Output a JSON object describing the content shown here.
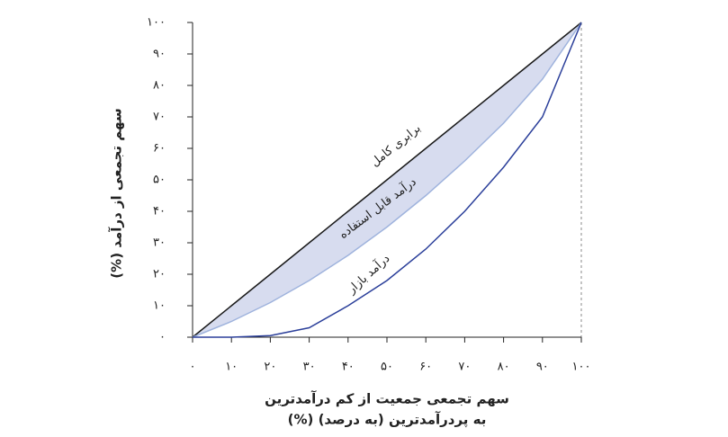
{
  "chart_data": {
    "type": "line",
    "xlabel": [
      "سهم تجمعی جمعیت از کم درآمدترین",
      "به پردرآمدترین (به درصد) (%)"
    ],
    "ylabel": "سهم تجمعی از درآمد (%)",
    "x": [
      0,
      10,
      20,
      30,
      40,
      50,
      60,
      70,
      80,
      90,
      100
    ],
    "series": [
      {
        "name": "برابری کامل",
        "color": "#1a1a1a",
        "values": [
          0,
          10,
          20,
          30,
          40,
          50,
          60,
          70,
          80,
          90,
          100
        ]
      },
      {
        "name": "درآمد قابل استفاده",
        "color": "#9fb3dd",
        "fill": "#d7dcef",
        "values": [
          0,
          5,
          11,
          18,
          26,
          35,
          45,
          56,
          68,
          82,
          100
        ]
      },
      {
        "name": "درآمد بازار",
        "color": "#2b3f9a",
        "values": [
          0,
          0,
          0.5,
          3,
          10,
          18,
          28,
          40,
          54,
          70,
          100
        ]
      }
    ],
    "xlim": [
      0,
      100
    ],
    "ylim": [
      0,
      100
    ],
    "xticks": [
      {
        "value": 0,
        "label": "۰"
      },
      {
        "value": 10,
        "label": "۱۰"
      },
      {
        "value": 20,
        "label": "۲۰"
      },
      {
        "value": 30,
        "label": "۳۰"
      },
      {
        "value": 40,
        "label": "۴۰"
      },
      {
        "value": 50,
        "label": "۵۰"
      },
      {
        "value": 60,
        "label": "۶۰"
      },
      {
        "value": 70,
        "label": "۷۰"
      },
      {
        "value": 80,
        "label": "۸۰"
      },
      {
        "value": 90,
        "label": "۹۰"
      },
      {
        "value": 100,
        "label": "۱۰۰"
      }
    ],
    "yticks": [
      {
        "value": 0,
        "label": "۰"
      },
      {
        "value": 10,
        "label": "۱۰"
      },
      {
        "value": 20,
        "label": "۲۰"
      },
      {
        "value": 30,
        "label": "۳۰"
      },
      {
        "value": 40,
        "label": "۴۰"
      },
      {
        "value": 50,
        "label": "۵۰"
      },
      {
        "value": 60,
        "label": "۶۰"
      },
      {
        "value": 70,
        "label": "۷۰"
      },
      {
        "value": 80,
        "label": "۸۰"
      },
      {
        "value": 90,
        "label": "۹۰"
      },
      {
        "value": 100,
        "label": "۱۰۰"
      }
    ]
  }
}
